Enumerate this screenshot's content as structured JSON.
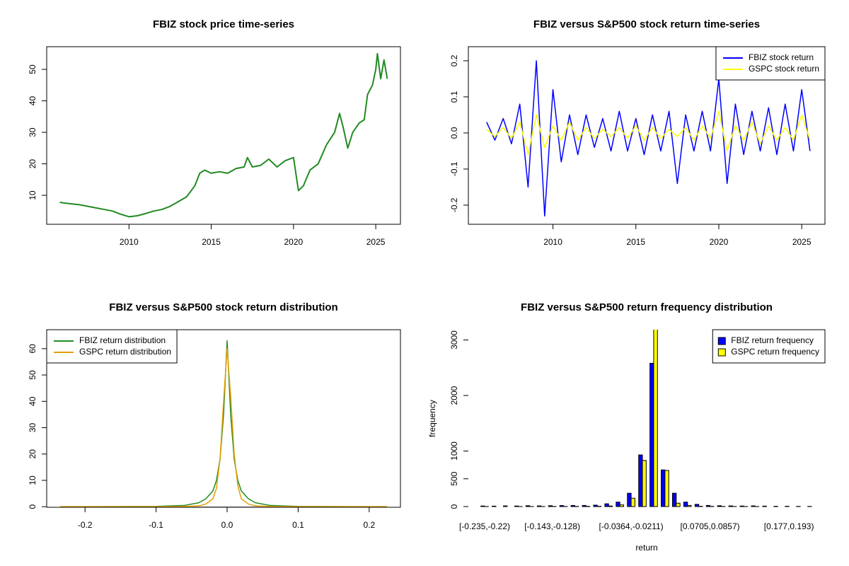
{
  "chart_data": [
    {
      "type": "line",
      "title": "FBIZ stock price time-series",
      "x": [
        2005.8,
        2006,
        2006.5,
        2007,
        2007.5,
        2008,
        2008.5,
        2009,
        2009.5,
        2010,
        2010.5,
        2011,
        2011.5,
        2012,
        2012.5,
        2013,
        2013.5,
        2014,
        2014.3,
        2014.6,
        2015,
        2015.5,
        2016,
        2016.5,
        2017,
        2017.2,
        2017.5,
        2018,
        2018.5,
        2019,
        2019.5,
        2020,
        2020.2,
        2020.3,
        2020.6,
        2021,
        2021.5,
        2022,
        2022.5,
        2022.8,
        2023,
        2023.3,
        2023.6,
        2024,
        2024.3,
        2024.5,
        2024.8,
        2025,
        2025.1,
        2025.3,
        2025.5,
        2025.7
      ],
      "series": [
        {
          "color": "#228b22",
          "values": [
            7.8,
            7.6,
            7.3,
            7.0,
            6.5,
            6.0,
            5.5,
            5.0,
            4.0,
            3.2,
            3.5,
            4.2,
            5.0,
            5.5,
            6.5,
            8.0,
            9.5,
            13,
            17,
            18,
            17,
            17.5,
            17,
            18.5,
            19,
            22,
            19,
            19.5,
            21.5,
            19,
            21,
            22,
            15,
            11.5,
            13,
            18,
            20,
            26,
            30,
            36,
            32,
            25,
            30,
            33,
            34,
            42,
            45,
            50,
            55,
            47,
            53,
            47
          ]
        }
      ],
      "xlim": [
        2005.0,
        2026.5
      ],
      "xticks": [
        2010,
        2015,
        2020,
        2025
      ],
      "ylim": [
        0.8,
        57.2
      ],
      "yticks": [
        10,
        20,
        30,
        40,
        50
      ]
    },
    {
      "type": "line",
      "title": "FBIZ versus S&P500 stock return time-series",
      "x": [
        2006,
        2006.5,
        2007,
        2007.5,
        2008,
        2008.5,
        2009,
        2009.5,
        2010,
        2010.5,
        2011,
        2011.5,
        2012,
        2012.5,
        2013,
        2013.5,
        2014,
        2014.5,
        2015,
        2015.5,
        2016,
        2016.5,
        2017,
        2017.5,
        2018,
        2018.5,
        2019,
        2019.5,
        2020,
        2020.5,
        2021,
        2021.5,
        2022,
        2022.5,
        2023,
        2023.5,
        2024,
        2024.5,
        2025,
        2025.5
      ],
      "series": [
        {
          "name": "FBIZ stock return",
          "color": "#0000ff",
          "values": [
            0.03,
            -0.02,
            0.04,
            -0.03,
            0.08,
            -0.15,
            0.2,
            -0.23,
            0.12,
            -0.08,
            0.05,
            -0.06,
            0.05,
            -0.04,
            0.04,
            -0.05,
            0.06,
            -0.05,
            0.04,
            -0.06,
            0.05,
            -0.05,
            0.06,
            -0.14,
            0.05,
            -0.05,
            0.06,
            -0.05,
            0.15,
            -0.14,
            0.08,
            -0.06,
            0.06,
            -0.05,
            0.07,
            -0.06,
            0.08,
            -0.05,
            0.12,
            -0.05
          ]
        },
        {
          "name": "GSPC stock return",
          "color": "#ffff00",
          "values": [
            0.01,
            -0.01,
            0.015,
            -0.015,
            0.03,
            -0.06,
            0.05,
            -0.04,
            0.02,
            -0.02,
            0.03,
            -0.02,
            0.015,
            -0.015,
            0.01,
            -0.01,
            0.015,
            -0.015,
            0.02,
            -0.02,
            0.015,
            -0.015,
            0.01,
            -0.01,
            0.015,
            -0.02,
            0.02,
            -0.015,
            0.06,
            -0.05,
            0.02,
            -0.02,
            0.03,
            -0.03,
            0.02,
            -0.02,
            0.015,
            -0.02,
            0.05,
            -0.02
          ]
        }
      ],
      "legend": "topright",
      "xlim": [
        2004.9,
        2026.4
      ],
      "xticks": [
        2010,
        2015,
        2020,
        2025
      ],
      "ylim": [
        -0.253,
        0.239
      ],
      "yticks": [
        -0.2,
        -0.1,
        {
          "value": 0,
          "label": "0.0"
        },
        0.1,
        0.2
      ]
    },
    {
      "type": "line",
      "title": "FBIZ versus S&P500 stock return distribution",
      "x": [
        -0.235,
        -0.1,
        -0.06,
        -0.04,
        -0.03,
        -0.02,
        -0.015,
        -0.01,
        -0.005,
        0,
        0.005,
        0.01,
        0.015,
        0.02,
        0.03,
        0.04,
        0.06,
        0.1,
        0.225
      ],
      "series": [
        {
          "name": "FBIZ return distribution",
          "color": "#228b22",
          "values": [
            0,
            0.1,
            0.5,
            1.5,
            3,
            6,
            10,
            18,
            35,
            63,
            35,
            18,
            10,
            6,
            3,
            1.5,
            0.5,
            0.1,
            0
          ]
        },
        {
          "name": "GSPC return distribution",
          "color": "#e69f00",
          "values": [
            0,
            0,
            0.1,
            0.3,
            1,
            3,
            7,
            18,
            40,
            60,
            42,
            20,
            8,
            3,
            1,
            0.3,
            0.1,
            0,
            0
          ]
        }
      ],
      "legend": "topleft",
      "xlim": [
        -0.254,
        0.244
      ],
      "xticks": [
        -0.2,
        -0.1,
        {
          "value": 0,
          "label": "0.0"
        },
        0.1,
        0.2
      ],
      "ylim": [
        -0.22,
        67.2
      ],
      "yticks": [
        0,
        10,
        20,
        30,
        40,
        50,
        60
      ]
    },
    {
      "type": "bar",
      "title": "FBIZ versus S&P500 return frequency distribution",
      "xlabel": "return",
      "ylabel": "frequency",
      "categories": [
        "[-0.235,-0.22)",
        null,
        null,
        null,
        null,
        null,
        "[-0.143,-0.128)",
        null,
        null,
        null,
        null,
        null,
        null,
        "[-0.0364,-0.0211)",
        null,
        null,
        null,
        null,
        null,
        null,
        "[0.0705,0.0857)",
        null,
        null,
        null,
        null,
        null,
        null,
        "[0.177,0.193)",
        null,
        null
      ],
      "series": [
        {
          "name": "FBIZ return frequency",
          "color": "#0000ff",
          "values": [
            10,
            8,
            12,
            10,
            15,
            12,
            15,
            18,
            20,
            20,
            25,
            50,
            80,
            240,
            930,
            2580,
            660,
            240,
            80,
            40,
            20,
            15,
            12,
            10,
            12,
            8,
            5,
            5,
            3,
            3
          ]
        },
        {
          "name": "GSPC return frequency",
          "color": "#ffff00",
          "values": [
            1,
            0,
            0,
            1,
            1,
            1,
            2,
            2,
            3,
            4,
            5,
            10,
            30,
            150,
            830,
            3300,
            650,
            60,
            20,
            5,
            3,
            2,
            1,
            1,
            1,
            0,
            0,
            0,
            0,
            0
          ]
        }
      ],
      "legend": "topright",
      "ylim": [
        -13,
        3185
      ],
      "yticks": [
        0,
        500,
        1000,
        2000,
        3000
      ]
    }
  ]
}
